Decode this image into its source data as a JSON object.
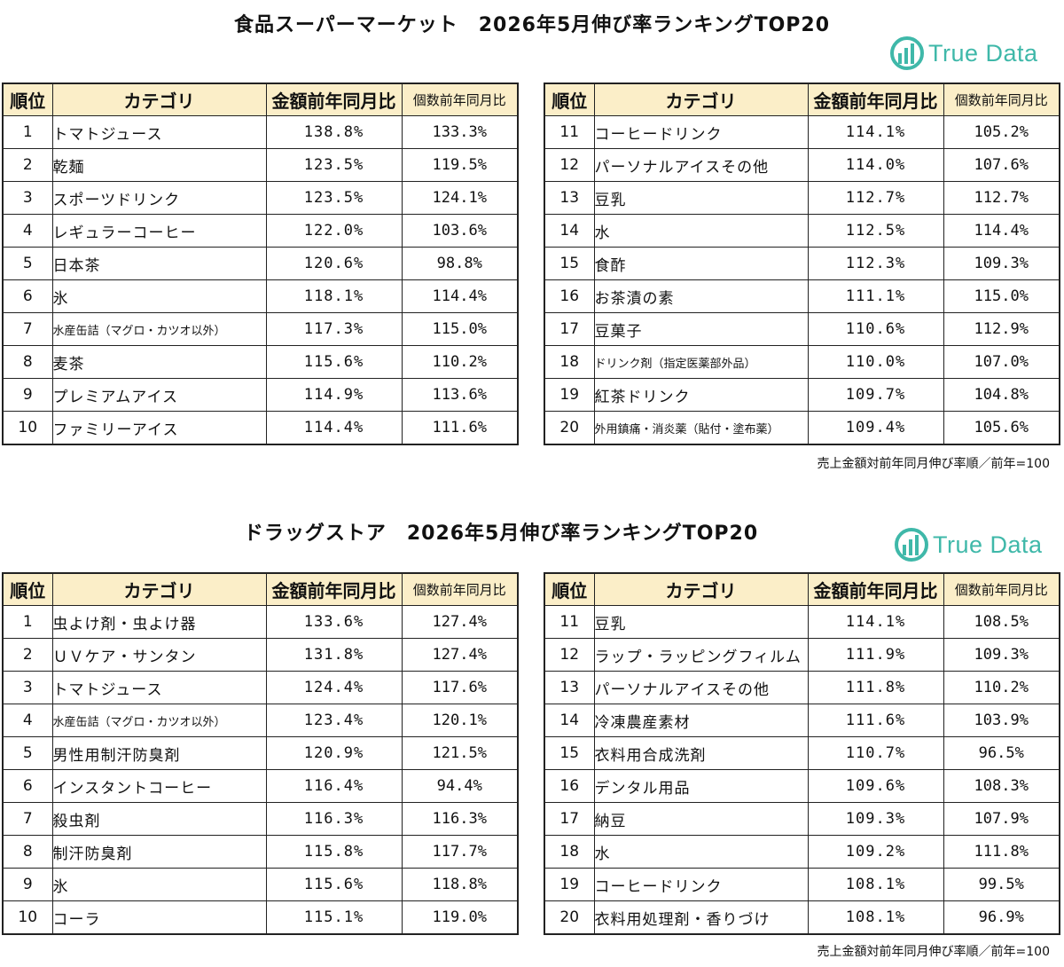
{
  "sections": [
    {
      "title": "食品スーパーマーケット　2026年5月伸び率ランキングTOP20",
      "logo_text": "True Data",
      "headers": {
        "rank": "順位",
        "category": "カテゴリ",
        "amount": "金額前年同月比",
        "quantity": "個数前年同月比"
      },
      "left": [
        {
          "rank": "1",
          "category": "トマトジュース",
          "amount": "138.8%",
          "quantity": "133.3%"
        },
        {
          "rank": "2",
          "category": "乾麺",
          "amount": "123.5%",
          "quantity": "119.5%"
        },
        {
          "rank": "3",
          "category": "スポーツドリンク",
          "amount": "123.5%",
          "quantity": "124.1%"
        },
        {
          "rank": "4",
          "category": "レギュラーコーヒー",
          "amount": "122.0%",
          "quantity": "103.6%"
        },
        {
          "rank": "5",
          "category": "日本茶",
          "amount": "120.6%",
          "quantity": "98.8%"
        },
        {
          "rank": "6",
          "category": "氷",
          "amount": "118.1%",
          "quantity": "114.4%"
        },
        {
          "rank": "7",
          "category": "水産缶詰（マグロ・カツオ以外）",
          "amount": "117.3%",
          "quantity": "115.0%"
        },
        {
          "rank": "8",
          "category": "麦茶",
          "amount": "115.6%",
          "quantity": "110.2%"
        },
        {
          "rank": "9",
          "category": "プレミアムアイス",
          "amount": "114.9%",
          "quantity": "113.6%"
        },
        {
          "rank": "10",
          "category": "ファミリーアイス",
          "amount": "114.4%",
          "quantity": "111.6%"
        }
      ],
      "right": [
        {
          "rank": "11",
          "category": "コーヒードリンク",
          "amount": "114.1%",
          "quantity": "105.2%"
        },
        {
          "rank": "12",
          "category": "パーソナルアイスその他",
          "amount": "114.0%",
          "quantity": "107.6%"
        },
        {
          "rank": "13",
          "category": "豆乳",
          "amount": "112.7%",
          "quantity": "112.7%"
        },
        {
          "rank": "14",
          "category": "水",
          "amount": "112.5%",
          "quantity": "114.4%"
        },
        {
          "rank": "15",
          "category": "食酢",
          "amount": "112.3%",
          "quantity": "109.3%"
        },
        {
          "rank": "16",
          "category": "お茶漬の素",
          "amount": "111.1%",
          "quantity": "115.0%"
        },
        {
          "rank": "17",
          "category": "豆菓子",
          "amount": "110.6%",
          "quantity": "112.9%"
        },
        {
          "rank": "18",
          "category": "ドリンク剤（指定医薬部外品）",
          "amount": "110.0%",
          "quantity": "107.0%"
        },
        {
          "rank": "19",
          "category": "紅茶ドリンク",
          "amount": "109.7%",
          "quantity": "104.8%"
        },
        {
          "rank": "20",
          "category": "外用鎮痛・消炎薬（貼付・塗布薬）",
          "amount": "109.4%",
          "quantity": "105.6%"
        }
      ],
      "note": "売上金額対前年同月伸び率順／前年=100"
    },
    {
      "title": "ドラッグストア　2026年5月伸び率ランキングTOP20",
      "logo_text": "True Data",
      "headers": {
        "rank": "順位",
        "category": "カテゴリ",
        "amount": "金額前年同月比",
        "quantity": "個数前年同月比"
      },
      "left": [
        {
          "rank": "1",
          "category": "虫よけ剤・虫よけ器",
          "amount": "133.6%",
          "quantity": "127.4%"
        },
        {
          "rank": "2",
          "category": "ＵＶケア・サンタン",
          "amount": "131.8%",
          "quantity": "127.4%"
        },
        {
          "rank": "3",
          "category": "トマトジュース",
          "amount": "124.4%",
          "quantity": "117.6%"
        },
        {
          "rank": "4",
          "category": "水産缶詰（マグロ・カツオ以外）",
          "amount": "123.4%",
          "quantity": "120.1%"
        },
        {
          "rank": "5",
          "category": "男性用制汗防臭剤",
          "amount": "120.9%",
          "quantity": "121.5%"
        },
        {
          "rank": "6",
          "category": "インスタントコーヒー",
          "amount": "116.4%",
          "quantity": "94.4%"
        },
        {
          "rank": "7",
          "category": "殺虫剤",
          "amount": "116.3%",
          "quantity": "116.3%"
        },
        {
          "rank": "8",
          "category": "制汗防臭剤",
          "amount": "115.8%",
          "quantity": "117.7%"
        },
        {
          "rank": "9",
          "category": "氷",
          "amount": "115.6%",
          "quantity": "118.8%"
        },
        {
          "rank": "10",
          "category": "コーラ",
          "amount": "115.1%",
          "quantity": "119.0%"
        }
      ],
      "right": [
        {
          "rank": "11",
          "category": "豆乳",
          "amount": "114.1%",
          "quantity": "108.5%"
        },
        {
          "rank": "12",
          "category": "ラップ・ラッピングフィルム",
          "amount": "111.9%",
          "quantity": "109.3%"
        },
        {
          "rank": "13",
          "category": "パーソナルアイスその他",
          "amount": "111.8%",
          "quantity": "110.2%"
        },
        {
          "rank": "14",
          "category": "冷凍農産素材",
          "amount": "111.6%",
          "quantity": "103.9%"
        },
        {
          "rank": "15",
          "category": "衣料用合成洗剤",
          "amount": "110.7%",
          "quantity": "96.5%"
        },
        {
          "rank": "16",
          "category": "デンタル用品",
          "amount": "109.6%",
          "quantity": "108.3%"
        },
        {
          "rank": "17",
          "category": "納豆",
          "amount": "109.3%",
          "quantity": "107.9%"
        },
        {
          "rank": "18",
          "category": "水",
          "amount": "109.2%",
          "quantity": "111.8%"
        },
        {
          "rank": "19",
          "category": "コーヒードリンク",
          "amount": "108.1%",
          "quantity": "99.5%"
        },
        {
          "rank": "20",
          "category": "衣料用処理剤・香りづけ",
          "amount": "108.1%",
          "quantity": "96.9%"
        }
      ],
      "note": "売上金額対前年同月伸び率順／前年=100"
    }
  ],
  "colors": {
    "header_bg": "#fbeec8",
    "logo": "#3fb8a9",
    "border": "#222222"
  }
}
